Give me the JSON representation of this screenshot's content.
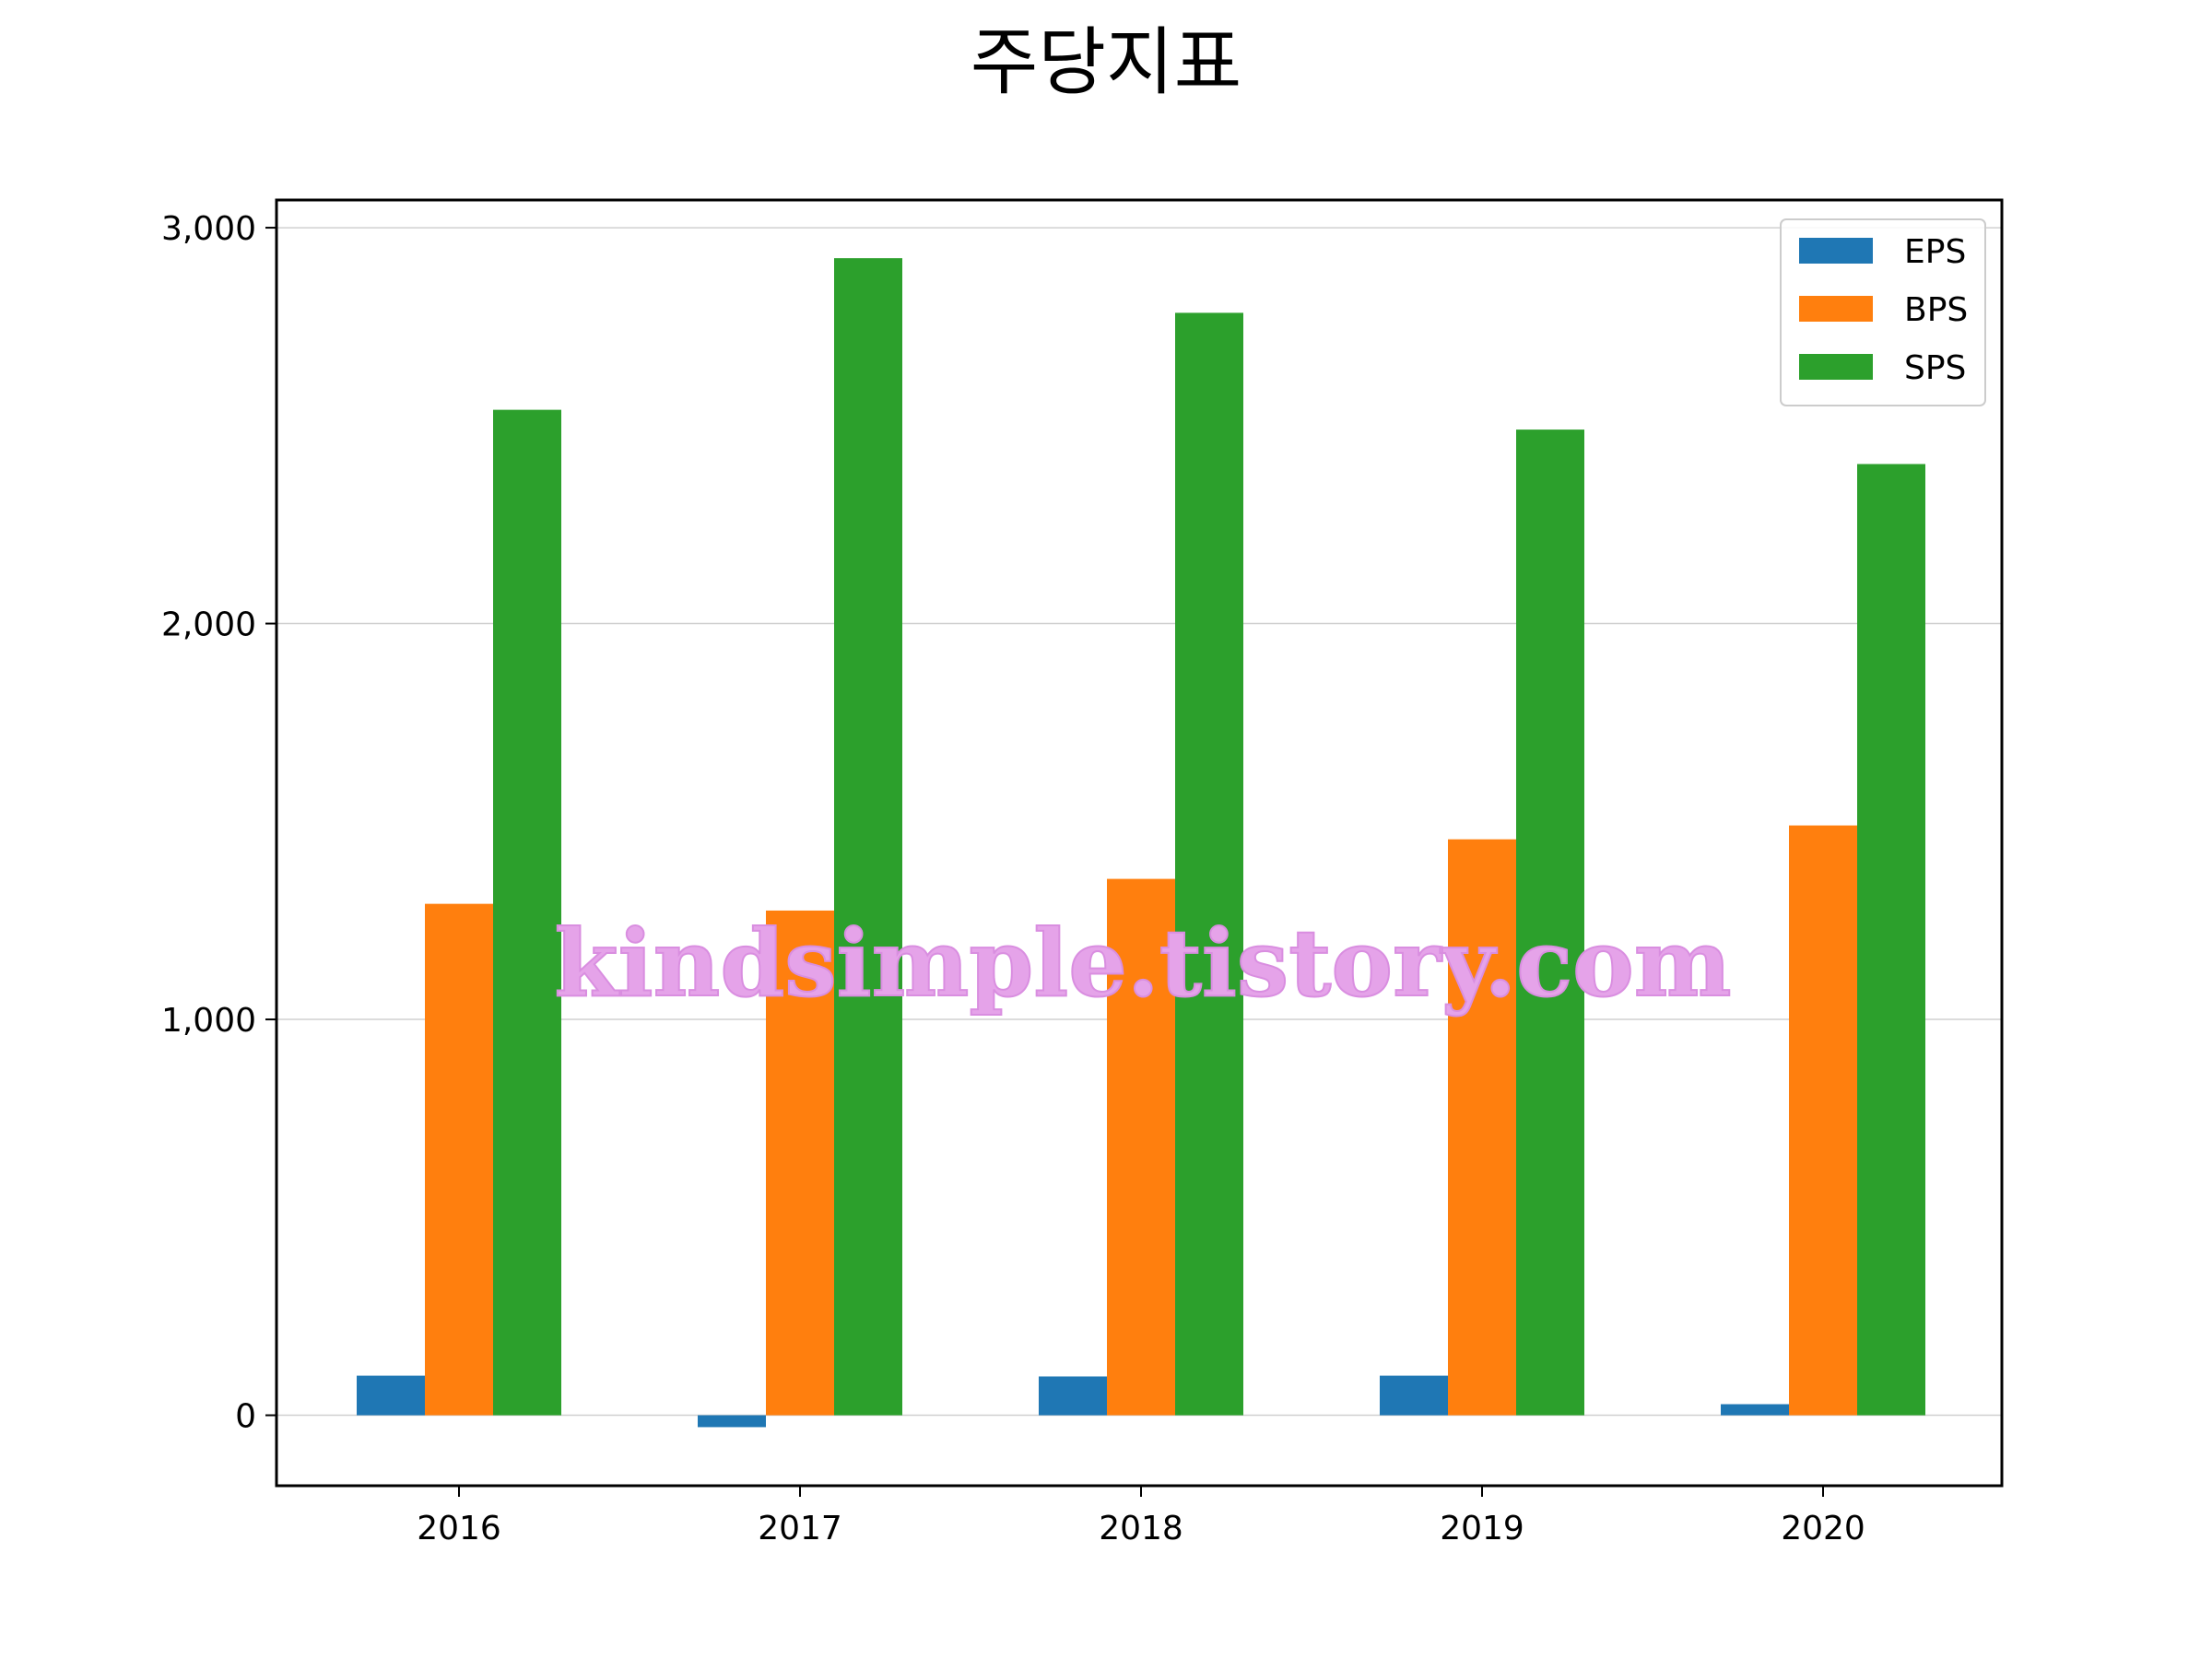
{
  "chart_data": {
    "type": "bar",
    "title": "주당지표",
    "xlabel": "",
    "ylabel": "",
    "categories": [
      "2016",
      "2017",
      "2018",
      "2019",
      "2020"
    ],
    "series": [
      {
        "name": "EPS",
        "values": [
          100,
          -30,
          98,
          100,
          28
        ]
      },
      {
        "name": "BPS",
        "values": [
          1292,
          1275,
          1355,
          1455,
          1490
        ]
      },
      {
        "name": "SPS",
        "values": [
          2540,
          2923,
          2785,
          2490,
          2403
        ]
      }
    ],
    "ylim": [
      -178,
      3070
    ],
    "yticks": [
      0,
      1000,
      2000,
      3000
    ],
    "ytick_labels": [
      "0",
      "1,000",
      "2,000",
      "3,000"
    ],
    "grid": "horizontal",
    "legend_position": "top-right",
    "colors": [
      "#1f77b4",
      "#ff7f0e",
      "#2ca02c"
    ],
    "watermark": "kindsimple.tistory.com"
  }
}
